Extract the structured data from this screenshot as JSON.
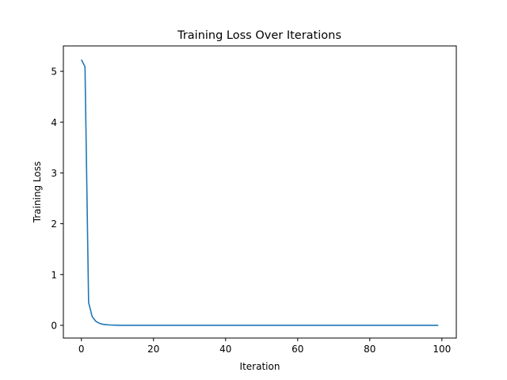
{
  "chart_data": {
    "type": "line",
    "title": "Training Loss Over Iterations",
    "xlabel": "Iteration",
    "ylabel": "Training Loss",
    "xlim": [
      -5,
      104
    ],
    "ylim": [
      -0.25,
      5.5
    ],
    "xticks": [
      0,
      20,
      40,
      60,
      80,
      100
    ],
    "yticks": [
      0,
      1,
      2,
      3,
      4,
      5
    ],
    "grid": false,
    "legend": false,
    "series": [
      {
        "color": "#1f77b4",
        "x": [
          0,
          1,
          2,
          3,
          4,
          5,
          6,
          7,
          8,
          9,
          10,
          11,
          12,
          13,
          14,
          15,
          16,
          17,
          18,
          19,
          20,
          21,
          22,
          23,
          24,
          25,
          26,
          27,
          28,
          29,
          30,
          31,
          32,
          33,
          34,
          35,
          36,
          37,
          38,
          39,
          40,
          41,
          42,
          43,
          44,
          45,
          46,
          47,
          48,
          49,
          50,
          51,
          52,
          53,
          54,
          55,
          56,
          57,
          58,
          59,
          60,
          61,
          62,
          63,
          64,
          65,
          66,
          67,
          68,
          69,
          70,
          71,
          72,
          73,
          74,
          75,
          76,
          77,
          78,
          79,
          80,
          81,
          82,
          83,
          84,
          85,
          86,
          87,
          88,
          89,
          90,
          91,
          92,
          93,
          94,
          95,
          96,
          97,
          98,
          99
        ],
        "y": [
          5.23,
          5.09,
          0.45,
          0.17,
          0.08,
          0.04,
          0.02,
          0.012,
          0.007,
          0.004,
          0.002,
          0.001,
          0.001,
          0.0005,
          0.0003,
          0.0002,
          0.0001,
          0.0001,
          5e-05,
          3e-05,
          0,
          0,
          0,
          0,
          0,
          0,
          0,
          0,
          0,
          0,
          0,
          0,
          0,
          0,
          0,
          0,
          0,
          0,
          0,
          0,
          0,
          0,
          0,
          0,
          0,
          0,
          0,
          0,
          0,
          0,
          0,
          0,
          0,
          0,
          0,
          0,
          0,
          0,
          0,
          0,
          0,
          0,
          0,
          0,
          0,
          0,
          0,
          0,
          0,
          0,
          0,
          0,
          0,
          0,
          0,
          0,
          0,
          0,
          0,
          0,
          0,
          0,
          0,
          0,
          0,
          0,
          0,
          0,
          0,
          0,
          0,
          0,
          0,
          0,
          0,
          0,
          0,
          0,
          0,
          0
        ]
      }
    ]
  }
}
